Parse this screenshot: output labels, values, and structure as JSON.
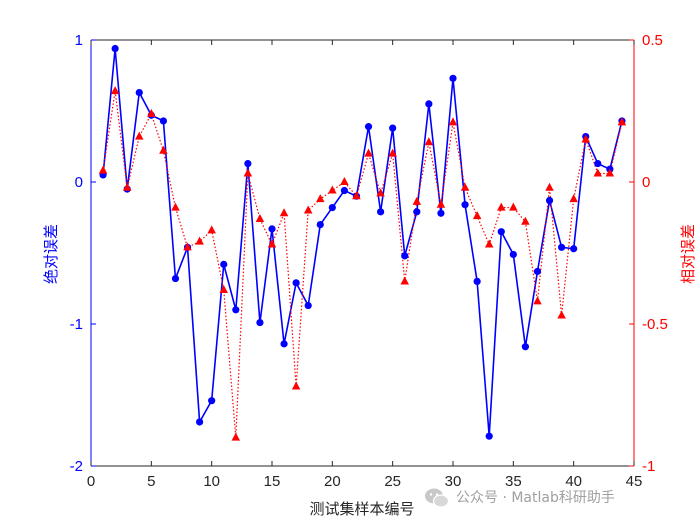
{
  "chart_data": {
    "type": "line",
    "xlabel": "测试集样本编号",
    "left_ylabel": "绝对误差",
    "right_ylabel": "相对误差",
    "xlim": [
      0,
      45
    ],
    "xticks": [
      0,
      5,
      10,
      15,
      20,
      25,
      30,
      35,
      40,
      45
    ],
    "ylim_left": [
      -2,
      1
    ],
    "yticks_left": [
      -2,
      -1,
      0,
      1
    ],
    "ylim_right": [
      -1,
      0.5
    ],
    "yticks_right": [
      -1,
      -0.5,
      0,
      0.5
    ],
    "x": [
      1,
      2,
      3,
      4,
      5,
      6,
      7,
      8,
      9,
      10,
      11,
      12,
      13,
      14,
      15,
      16,
      17,
      18,
      19,
      20,
      21,
      22,
      23,
      24,
      25,
      26,
      27,
      28,
      29,
      30,
      31,
      32,
      33,
      34,
      35,
      36,
      37,
      38,
      39,
      40,
      41,
      42,
      43,
      44
    ],
    "series": [
      {
        "axis": "left",
        "color": "#0000ff",
        "line_style": "solid",
        "marker": "circle",
        "values": [
          0.05,
          0.94,
          -0.05,
          0.63,
          0.47,
          0.43,
          -0.68,
          -0.46,
          -1.69,
          -1.54,
          -0.58,
          -0.9,
          0.13,
          -0.99,
          -0.33,
          -1.14,
          -0.71,
          -0.87,
          -0.3,
          -0.18,
          -0.06,
          -0.1,
          0.39,
          -0.21,
          0.38,
          -0.52,
          -0.21,
          0.55,
          -0.22,
          0.73,
          -0.16,
          -0.7,
          -1.79,
          -0.35,
          -0.51,
          -1.16,
          -0.63,
          -0.13,
          -0.46,
          -0.47,
          0.32,
          0.13,
          0.09,
          0.43
        ]
      },
      {
        "axis": "right",
        "color": "#ff0000",
        "line_style": "dotted",
        "marker": "triangle",
        "values": [
          0.04,
          0.32,
          -0.02,
          0.16,
          0.24,
          0.11,
          -0.09,
          -0.23,
          -0.21,
          -0.17,
          -0.38,
          -0.9,
          0.03,
          -0.13,
          -0.22,
          -0.11,
          -0.72,
          -0.1,
          -0.06,
          -0.03,
          0.0,
          -0.05,
          0.1,
          -0.04,
          0.1,
          -0.35,
          -0.07,
          0.14,
          -0.08,
          0.21,
          -0.02,
          -0.12,
          -0.22,
          -0.09,
          -0.09,
          -0.14,
          -0.42,
          -0.02,
          -0.47,
          -0.06,
          0.15,
          0.03,
          0.03,
          0.21
        ]
      }
    ],
    "left_axis_color": "#0000ff",
    "right_axis_color": "#ff0000",
    "grid": false
  },
  "watermark": {
    "text": "公众号 · Matlab科研助手",
    "icon": "wechat-icon"
  }
}
